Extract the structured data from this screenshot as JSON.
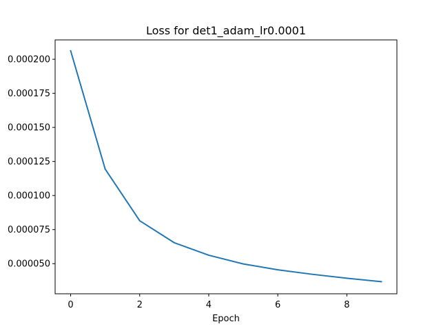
{
  "chart_data": {
    "type": "line",
    "title": "Loss for det1_adam_lr0.0001",
    "xlabel": "Epoch",
    "ylabel": "",
    "xlim": [
      -0.45,
      9.45
    ],
    "ylim": [
      2.79e-05,
      0.0002142
    ],
    "xticks": [
      0,
      2,
      4,
      6,
      8
    ],
    "xtick_labels": [
      "0",
      "2",
      "4",
      "6",
      "8"
    ],
    "yticks": [
      5e-05,
      7.5e-05,
      0.0001,
      0.000125,
      0.00015,
      0.000175,
      0.0002
    ],
    "ytick_labels": [
      "0.000050",
      "0.000075",
      "0.000100",
      "0.000125",
      "0.000150",
      "0.000175",
      "0.000200"
    ],
    "grid": false,
    "series": [
      {
        "x": [
          0,
          1,
          2,
          3,
          4,
          5,
          6,
          7,
          8,
          9
        ],
        "y": [
          0.0002062,
          0.0001194,
          8.15e-05,
          6.54e-05,
          5.62e-05,
          4.98e-05,
          4.55e-05,
          4.22e-05,
          3.93e-05,
          3.68e-05
        ],
        "color": "#1f77b4"
      }
    ]
  }
}
